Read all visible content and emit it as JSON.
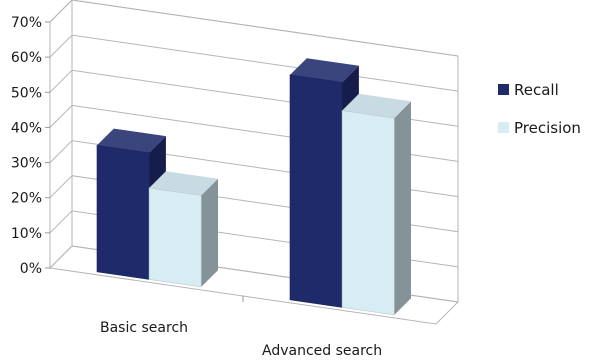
{
  "chart_data": {
    "type": "bar",
    "style": "3d-clustered-column",
    "title": "",
    "xlabel": "",
    "ylabel": "",
    "categories": [
      "Basic search",
      "Advanced search"
    ],
    "series": [
      {
        "name": "Recall",
        "values": [
          0.36,
          0.64
        ],
        "color": "#1f2a6b"
      },
      {
        "name": "Precision",
        "values": [
          0.26,
          0.56
        ],
        "color": "#d7ecf3"
      }
    ],
    "ylim": [
      0,
      0.7
    ],
    "yticks": [
      "0%",
      "10%",
      "20%",
      "30%",
      "40%",
      "50%",
      "60%",
      "70%"
    ],
    "grid": true,
    "legend_position": "right"
  }
}
